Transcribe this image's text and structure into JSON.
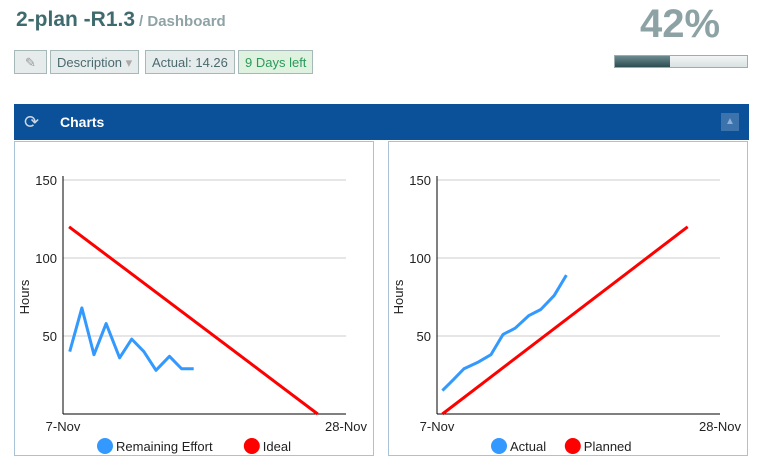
{
  "header": {
    "title": "2-plan -R1.3",
    "subtitle": "/ Dashboard",
    "percent": "42%",
    "progress": 0.42
  },
  "toolbar": {
    "edit_icon": "pencil-icon",
    "description": "Description",
    "actual": "Actual: 14.26",
    "days_left": "9 Days left"
  },
  "panel": {
    "title": "Charts",
    "refresh_icon": "refresh-icon",
    "collapse_icon": "triangle-up-icon"
  },
  "chart_data": [
    {
      "type": "line",
      "ylabel": "Hours",
      "ylim": [
        0,
        150
      ],
      "yticks": [
        "50",
        "100",
        "150"
      ],
      "xticks": [
        "7-Nov",
        "28-Nov"
      ],
      "xlim": [
        0,
        21
      ],
      "series": [
        {
          "name": "Remaining Effort",
          "color": "#3399ff",
          "x": [
            0.5,
            1.4,
            2.3,
            3.2,
            4.2,
            5.1,
            6.0,
            6.9,
            7.9,
            8.8,
            9.7
          ],
          "y": [
            40,
            68,
            38,
            58,
            36,
            48,
            40,
            28,
            37,
            29,
            29
          ]
        },
        {
          "name": "Ideal",
          "color": "#ff0000",
          "x": [
            0.45,
            18.9
          ],
          "y": [
            120,
            0
          ]
        }
      ]
    },
    {
      "type": "line",
      "ylabel": "Hours",
      "ylim": [
        0,
        150
      ],
      "yticks": [
        "50",
        "100",
        "150"
      ],
      "xticks": [
        "7-Nov",
        "28-Nov"
      ],
      "xlim": [
        0,
        21
      ],
      "series": [
        {
          "name": "Actual",
          "color": "#3399ff",
          "x": [
            0.4,
            1.1,
            2.0,
            3.0,
            4.0,
            4.9,
            5.8,
            6.8,
            7.7,
            8.7,
            9.6
          ],
          "y": [
            15,
            21,
            29,
            33,
            38,
            51,
            55,
            63,
            67,
            76,
            89
          ]
        },
        {
          "name": "Planned",
          "color": "#ff0000",
          "x": [
            0.4,
            18.6
          ],
          "y": [
            0,
            120
          ]
        }
      ]
    }
  ]
}
